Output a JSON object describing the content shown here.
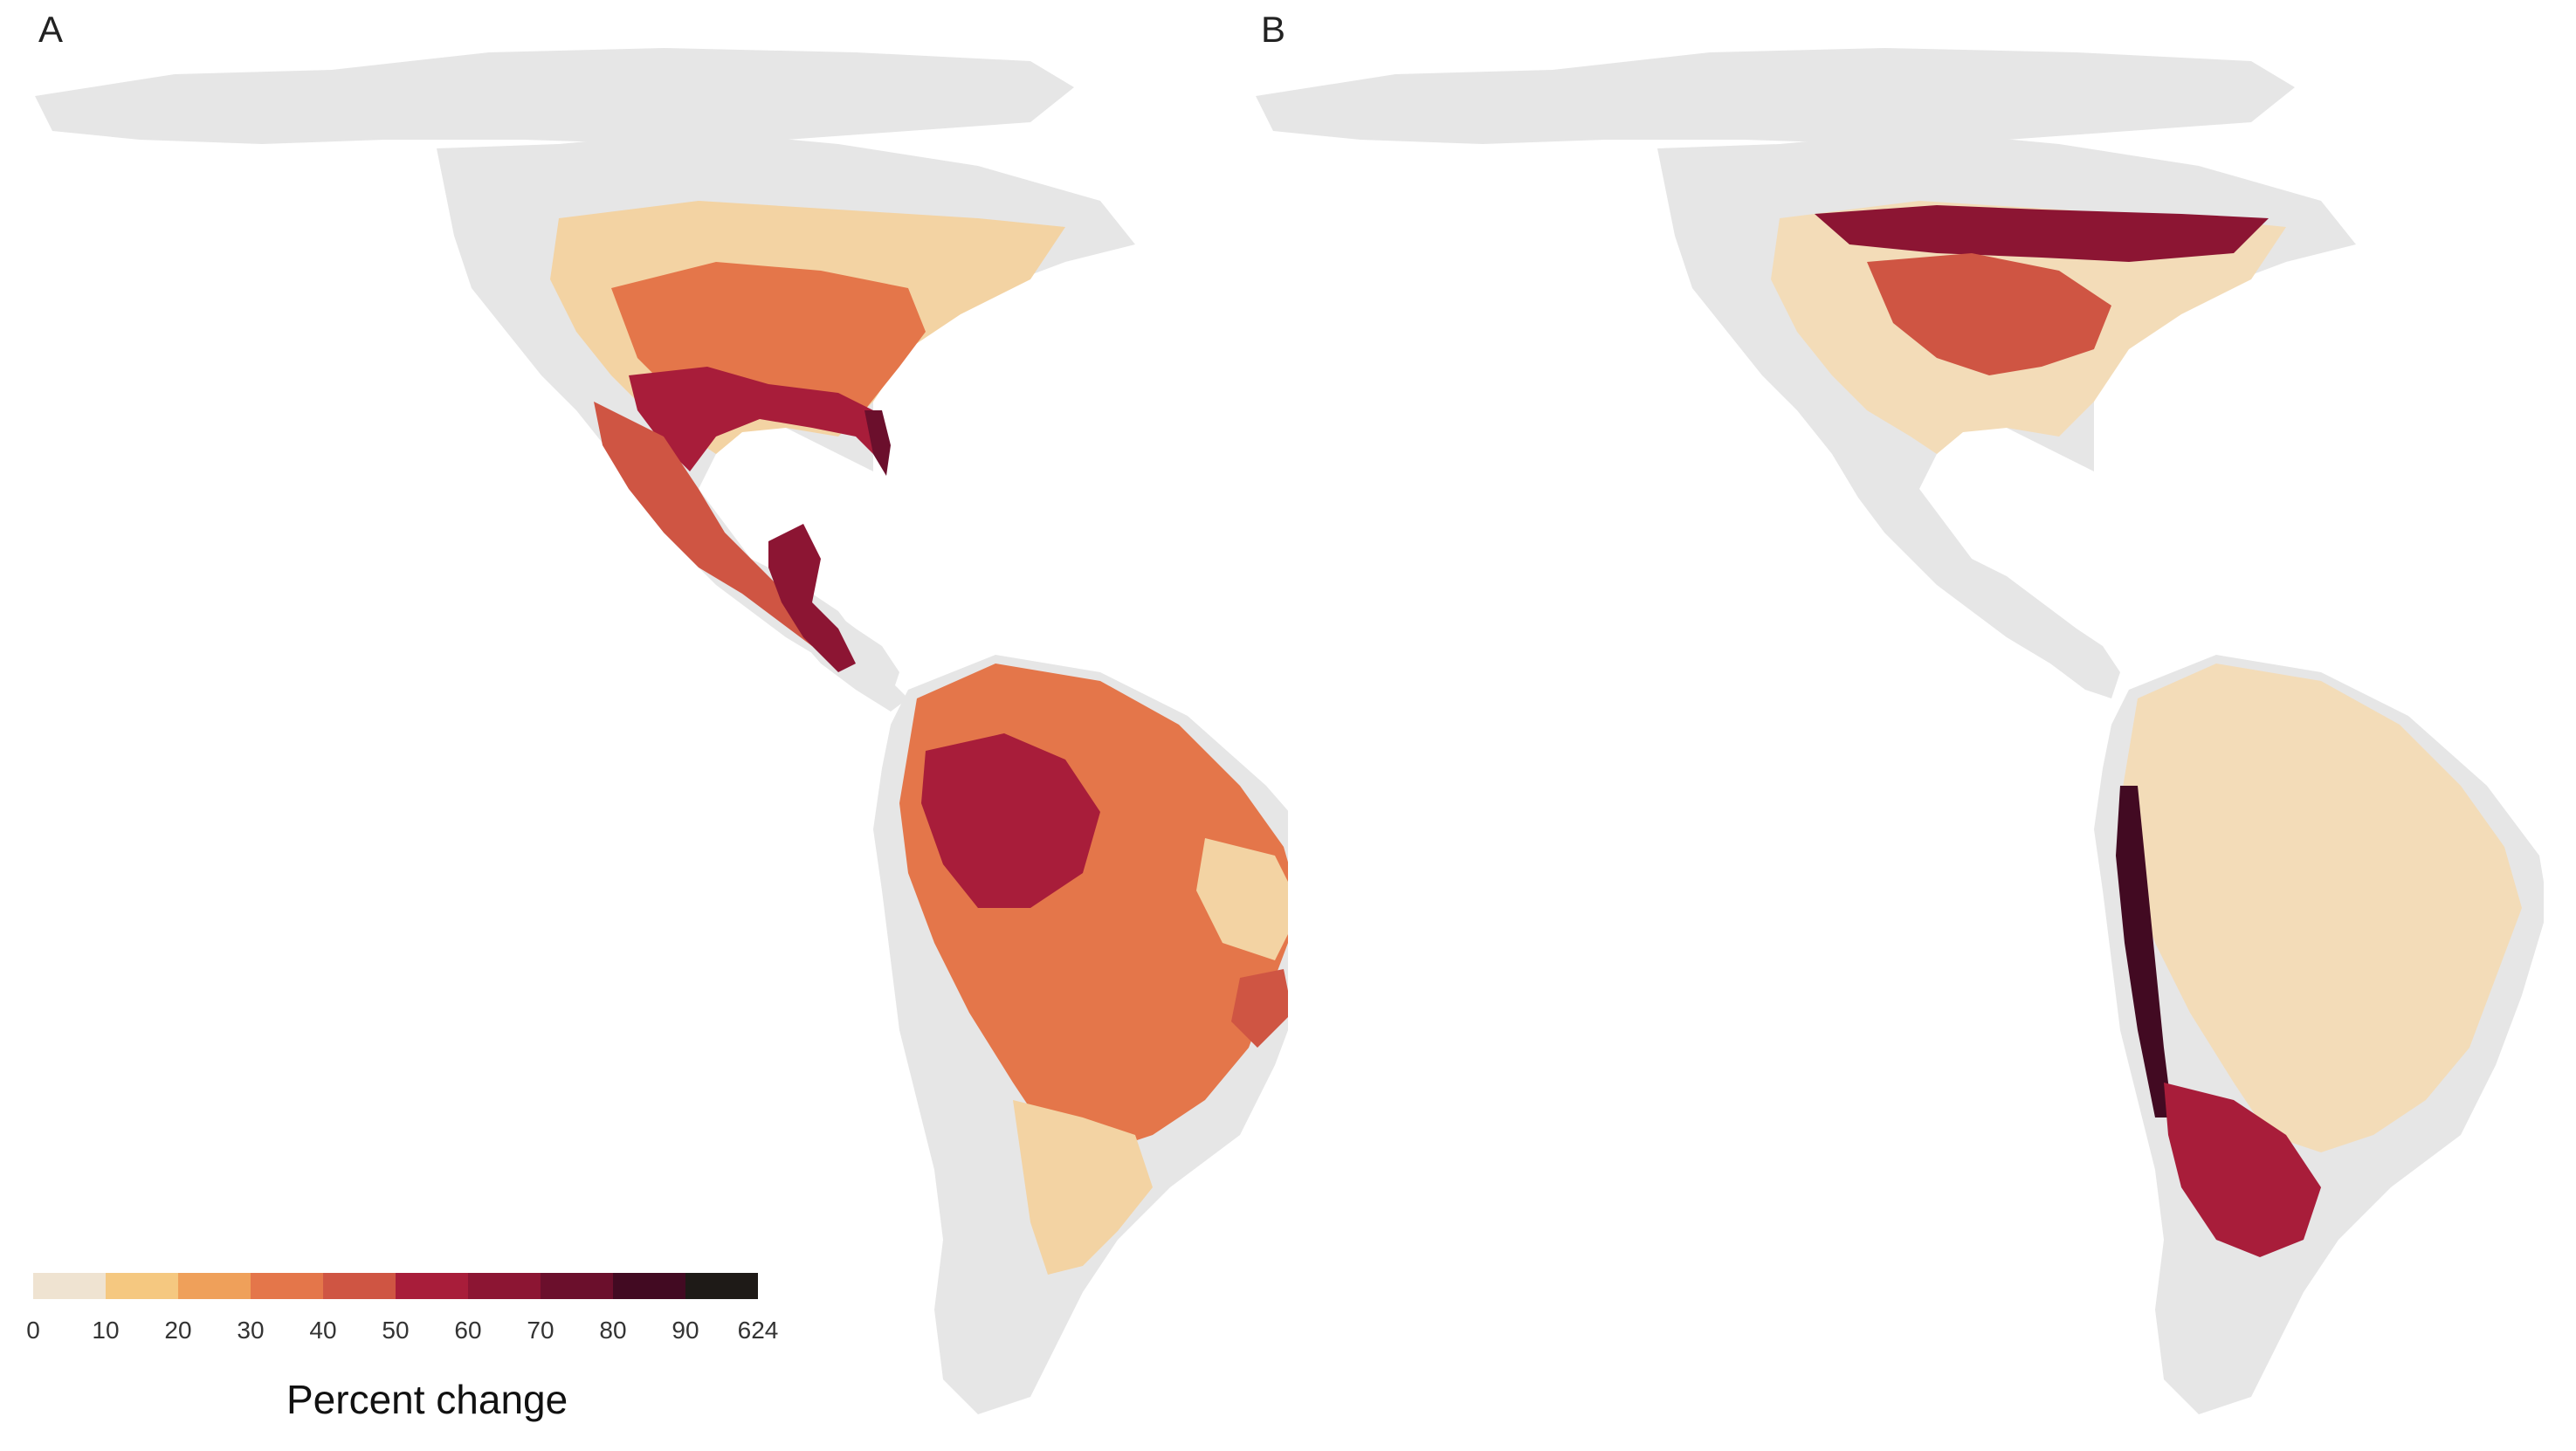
{
  "panels": [
    {
      "id": "A",
      "letter": "A"
    },
    {
      "id": "B",
      "letter": "B"
    }
  ],
  "map": {
    "region": "Americas",
    "land_color": "#e6e6e6",
    "background_color": "#ffffff"
  },
  "legend": {
    "title": "Percent change",
    "tick_labels": [
      "0",
      "10",
      "20",
      "30",
      "40",
      "50",
      "60",
      "70",
      "80",
      "90",
      "624"
    ],
    "bins": [
      {
        "range": [
          0,
          10
        ],
        "color": "#efe3d1"
      },
      {
        "range": [
          10,
          20
        ],
        "color": "#f5c880"
      },
      {
        "range": [
          20,
          30
        ],
        "color": "#efa05a"
      },
      {
        "range": [
          30,
          40
        ],
        "color": "#e4764a"
      },
      {
        "range": [
          40,
          50
        ],
        "color": "#cf5543"
      },
      {
        "range": [
          50,
          60
        ],
        "color": "#a81d3a"
      },
      {
        "range": [
          60,
          70
        ],
        "color": "#8c1533"
      },
      {
        "range": [
          70,
          80
        ],
        "color": "#6b0f2c"
      },
      {
        "range": [
          80,
          90
        ],
        "color": "#420a22"
      },
      {
        "range": [
          90,
          624
        ],
        "color": "#1e1a17"
      }
    ]
  }
}
